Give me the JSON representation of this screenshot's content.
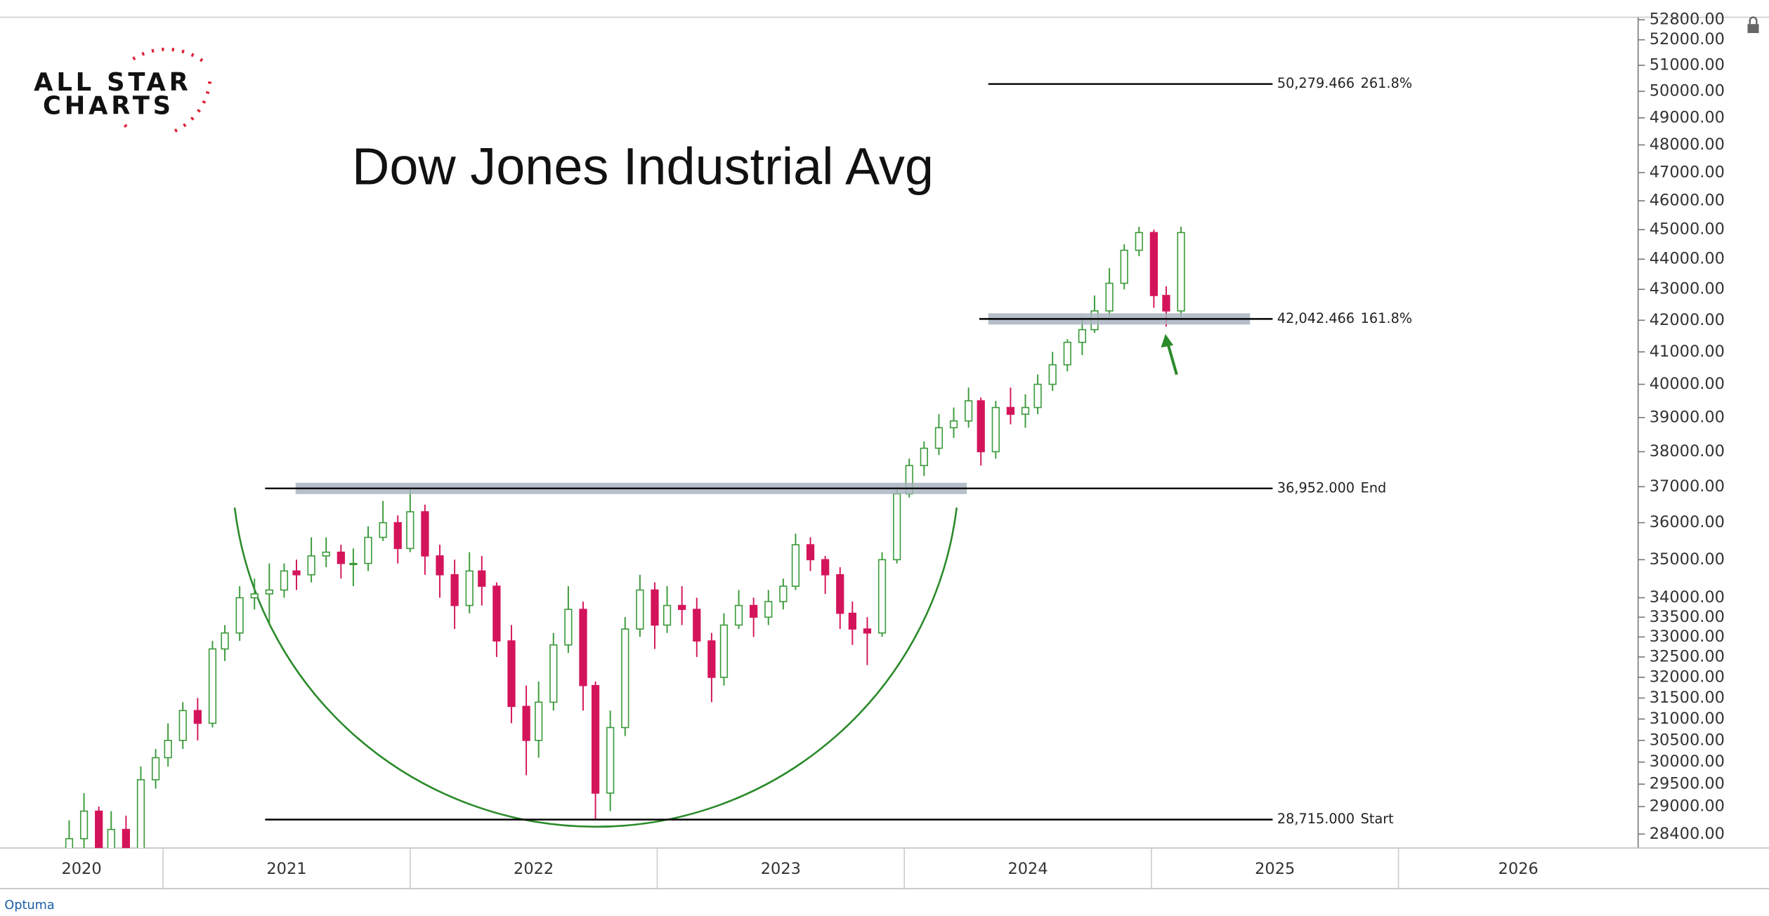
{
  "logo_lines": [
    "ALL STAR",
    "CHARTS"
  ],
  "footer": "Optuma",
  "chart_data": {
    "type": "candlestick",
    "title": "Dow Jones Industrial Avg",
    "log_scale": true,
    "up_color": "#3a9a3a",
    "down_color": "#d4145a",
    "arc_color": "#2a8a2a",
    "zone_color": "#a9b4bf",
    "x": [
      2020.62,
      2020.68,
      2020.74,
      2020.79,
      2020.85,
      2020.91,
      2020.97,
      2021.02,
      2021.08,
      2021.14,
      2021.2,
      2021.25,
      2021.31,
      2021.37,
      2021.43,
      2021.49,
      2021.54,
      2021.6,
      2021.66,
      2021.72,
      2021.77,
      2021.83,
      2021.89,
      2021.95,
      2022.0,
      2022.06,
      2022.12,
      2022.18,
      2022.24,
      2022.29,
      2022.35,
      2022.41,
      2022.47,
      2022.52,
      2022.58,
      2022.64,
      2022.7,
      2022.75,
      2022.81,
      2022.87,
      2022.93,
      2022.99,
      2023.04,
      2023.1,
      2023.16,
      2023.22,
      2023.27,
      2023.33,
      2023.39,
      2023.45,
      2023.51,
      2023.56,
      2023.62,
      2023.68,
      2023.74,
      2023.79,
      2023.85,
      2023.91,
      2023.97,
      2024.02,
      2024.08,
      2024.14,
      2024.2,
      2024.26,
      2024.31,
      2024.37,
      2024.43,
      2024.49,
      2024.54,
      2024.6,
      2024.66,
      2024.72,
      2024.77,
      2024.83,
      2024.89,
      2024.95,
      2025.01,
      2025.06,
      2025.12
    ],
    "open": [
      28000,
      28300,
      28900,
      27800,
      28500,
      28000,
      29600,
      30100,
      30500,
      31200,
      30900,
      32700,
      33100,
      34000,
      34100,
      34200,
      34700,
      34600,
      35100,
      35200,
      34900,
      34900,
      35600,
      36000,
      35300,
      36300,
      35100,
      34600,
      33800,
      34700,
      34300,
      32900,
      31300,
      30500,
      31400,
      32800,
      33700,
      31800,
      29300,
      30800,
      33200,
      34200,
      33300,
      33800,
      33700,
      32900,
      32000,
      33300,
      33800,
      33500,
      33900,
      34300,
      35400,
      35000,
      34600,
      33600,
      33200,
      33100,
      35000,
      36800,
      37600,
      38100,
      38700,
      38900,
      39500,
      38000,
      39300,
      39100,
      39300,
      40000,
      40600,
      41300,
      41700,
      42300,
      43200,
      44300,
      44900,
      42800,
      42300
    ],
    "high": [
      28700,
      29300,
      29000,
      28900,
      28800,
      29900,
      30300,
      30900,
      31400,
      31500,
      32900,
      33300,
      34300,
      34500,
      34900,
      34900,
      35000,
      35600,
      35600,
      35400,
      35300,
      35900,
      36600,
      36200,
      36950,
      36500,
      35400,
      35000,
      35200,
      35100,
      34400,
      33300,
      31800,
      31900,
      33100,
      34300,
      33900,
      31900,
      31200,
      33500,
      34600,
      34400,
      34300,
      34300,
      34000,
      33100,
      33600,
      34200,
      34000,
      34200,
      34500,
      35700,
      35600,
      35100,
      34800,
      33900,
      33500,
      35200,
      37000,
      37800,
      38300,
      39100,
      39300,
      39900,
      39600,
      39500,
      39900,
      39700,
      40300,
      41000,
      41400,
      42100,
      42800,
      43700,
      44500,
      45100,
      45000,
      43100,
      45100
    ],
    "low": [
      27600,
      28100,
      27500,
      27400,
      26900,
      27900,
      29400,
      29900,
      30300,
      30500,
      30800,
      32400,
      32900,
      33700,
      33300,
      34000,
      34200,
      34400,
      34800,
      34500,
      34300,
      34700,
      35500,
      34900,
      35200,
      34600,
      34000,
      33200,
      33600,
      33800,
      32500,
      30900,
      29700,
      30100,
      31200,
      32600,
      31200,
      28700,
      28900,
      30600,
      33000,
      32700,
      33100,
      33300,
      32500,
      31400,
      31800,
      33200,
      33000,
      33300,
      33700,
      34200,
      34700,
      34100,
      33200,
      32800,
      32300,
      33000,
      34900,
      36700,
      37300,
      37900,
      38400,
      38700,
      37600,
      37800,
      38800,
      38700,
      39100,
      39800,
      40400,
      40900,
      41600,
      42100,
      43000,
      44100,
      42400,
      41800,
      42100
    ],
    "close": [
      28300,
      28900,
      27800,
      28500,
      28000,
      29600,
      30100,
      30500,
      31200,
      30900,
      32700,
      33100,
      34000,
      34100,
      34200,
      34700,
      34600,
      35100,
      35200,
      34900,
      34900,
      35600,
      36000,
      35300,
      36300,
      35100,
      34600,
      33800,
      34700,
      34300,
      32900,
      31300,
      30500,
      31400,
      32800,
      33700,
      31800,
      29300,
      30800,
      33200,
      34200,
      33300,
      33800,
      33700,
      32900,
      32000,
      33300,
      33800,
      33500,
      33900,
      34300,
      35400,
      35000,
      34600,
      33600,
      33200,
      33100,
      35000,
      36800,
      37600,
      38100,
      38700,
      38900,
      39500,
      38000,
      39300,
      39100,
      39300,
      40000,
      40600,
      41300,
      41700,
      42300,
      43200,
      44300,
      44900,
      42800,
      42300,
      44900
    ],
    "xlim": [
      2020.34,
      2026.97
    ],
    "xticks": [
      2020,
      2021,
      2022,
      2023,
      2024,
      2025,
      2026
    ],
    "ylim": [
      28100,
      52900
    ],
    "yticks": [
      {
        "value": 28400,
        "label": "28400.00"
      },
      {
        "value": 29000,
        "label": "29000.00"
      },
      {
        "value": 29500,
        "label": "29500.00"
      },
      {
        "value": 30000,
        "label": "30000.00"
      },
      {
        "value": 30500,
        "label": "30500.00"
      },
      {
        "value": 31000,
        "label": "31000.00"
      },
      {
        "value": 31500,
        "label": "31500.00"
      },
      {
        "value": 32000,
        "label": "32000.00"
      },
      {
        "value": 32500,
        "label": "32500.00"
      },
      {
        "value": 33000,
        "label": "33000.00"
      },
      {
        "value": 33500,
        "label": "33500.00"
      },
      {
        "value": 34000,
        "label": "34000.00"
      },
      {
        "value": 35000,
        "label": "35000.00"
      },
      {
        "value": 36000,
        "label": "36000.00"
      },
      {
        "value": 37000,
        "label": "37000.00"
      },
      {
        "value": 38000,
        "label": "38000.00"
      },
      {
        "value": 39000,
        "label": "39000.00"
      },
      {
        "value": 40000,
        "label": "40000.00"
      },
      {
        "value": 41000,
        "label": "41000.00"
      },
      {
        "value": 42000,
        "label": "42000.00"
      },
      {
        "value": 43000,
        "label": "43000.00"
      },
      {
        "value": 44000,
        "label": "44000.00"
      },
      {
        "value": 45000,
        "label": "45000.00"
      },
      {
        "value": 46000,
        "label": "46000.00"
      },
      {
        "value": 47000,
        "label": "47000.00"
      },
      {
        "value": 48000,
        "label": "48000.00"
      },
      {
        "value": 49000,
        "label": "49000.00"
      },
      {
        "value": 50000,
        "label": "50000.00"
      },
      {
        "value": 51000,
        "label": "51000.00"
      },
      {
        "value": 52000,
        "label": "52000.00"
      },
      {
        "value": 52800,
        "label": "52800.00"
      }
    ],
    "levels": [
      {
        "value": 50279.466,
        "label": "50,279.466",
        "tag": "261.8%"
      },
      {
        "value": 42042.466,
        "label": "42,042.466",
        "tag": "161.8%"
      },
      {
        "value": 36952,
        "label": "36,952.000",
        "tag": "End"
      },
      {
        "value": 28715,
        "label": "28,715.000",
        "tag": "Start"
      }
    ]
  }
}
